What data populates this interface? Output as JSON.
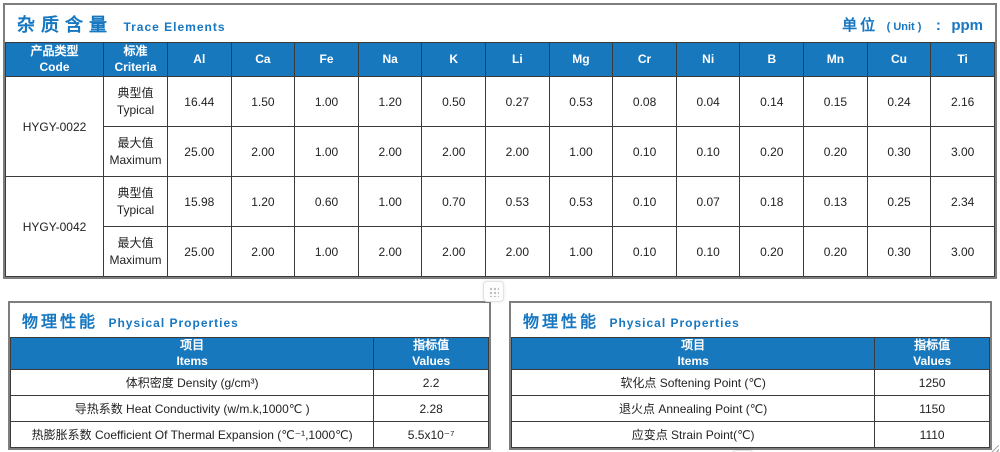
{
  "colors": {
    "accent": "#1777c0",
    "table_header_bg": "#1878be",
    "table_header_text": "#ffffff",
    "cell_border": "#3b3b3b",
    "panel_border": "#7e7e7e"
  },
  "trace": {
    "title_zh": "杂质含量",
    "title_en": "Trace Elements",
    "unit_zh": "单位",
    "unit_paren": "( Unit )",
    "unit_colon": ":",
    "unit_value": "ppm",
    "header_code_zh": "产品类型",
    "header_code_en": "Code",
    "header_criteria_zh": "标准",
    "header_criteria_en": "Criteria",
    "elements": [
      "Al",
      "Ca",
      "Fe",
      "Na",
      "K",
      "Li",
      "Mg",
      "Cr",
      "Ni",
      "B",
      "Mn",
      "Cu",
      "Ti"
    ],
    "products": [
      {
        "code": "HYGY-0022",
        "rows": [
          {
            "label_zh": "典型值",
            "label_en": "Typical",
            "values": [
              "16.44",
              "1.50",
              "1.00",
              "1.20",
              "0.50",
              "0.27",
              "0.53",
              "0.08",
              "0.04",
              "0.14",
              "0.15",
              "0.24",
              "2.16"
            ]
          },
          {
            "label_zh": "最大值",
            "label_en": "Maximum",
            "values": [
              "25.00",
              "2.00",
              "1.00",
              "2.00",
              "2.00",
              "2.00",
              "1.00",
              "0.10",
              "0.10",
              "0.20",
              "0.20",
              "0.30",
              "3.00"
            ]
          }
        ]
      },
      {
        "code": "HYGY-0042",
        "rows": [
          {
            "label_zh": "典型值",
            "label_en": "Typical",
            "values": [
              "15.98",
              "1.20",
              "0.60",
              "1.00",
              "0.70",
              "0.53",
              "0.53",
              "0.10",
              "0.07",
              "0.18",
              "0.13",
              "0.25",
              "2.34"
            ]
          },
          {
            "label_zh": "最大值",
            "label_en": "Maximum",
            "values": [
              "25.00",
              "2.00",
              "1.00",
              "2.00",
              "2.00",
              "2.00",
              "1.00",
              "0.10",
              "0.10",
              "0.20",
              "0.20",
              "0.30",
              "3.00"
            ]
          }
        ]
      }
    ]
  },
  "physical_left": {
    "title_zh": "物理性能",
    "title_en": "Physical Properties",
    "col_item_zh": "项目",
    "col_item_en": "Items",
    "col_value_zh": "指标值",
    "col_value_en": "Values",
    "rows": [
      {
        "item": "体积密度 Density (g/cm³)",
        "value": "2.2"
      },
      {
        "item": "导热系数 Heat Conductivity (w/m.k,1000℃ )",
        "value": "2.28"
      },
      {
        "item": "热膨胀系数 Coefficient Of Thermal Expansion (℃⁻¹,1000℃)",
        "value": "5.5x10⁻⁷"
      }
    ]
  },
  "physical_right": {
    "title_zh": "物理性能",
    "title_en": "Physical Properties",
    "col_item_zh": "项目",
    "col_item_en": "Items",
    "col_value_zh": "指标值",
    "col_value_en": "Values",
    "rows": [
      {
        "item": "软化点 Softening Point (℃)",
        "value": "1250"
      },
      {
        "item": "退火点 Annealing Point (℃)",
        "value": "1150"
      },
      {
        "item": "应变点 Strain Point(℃)",
        "value": "1110"
      }
    ]
  }
}
